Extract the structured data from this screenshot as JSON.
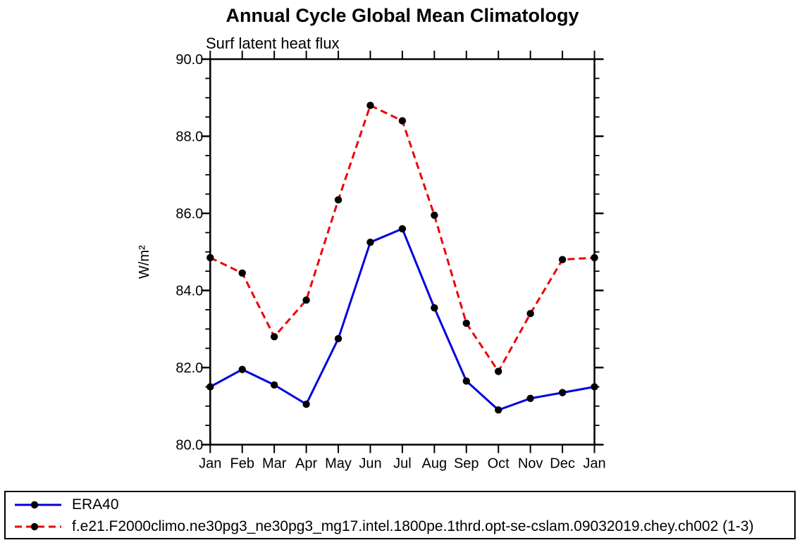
{
  "chart_data": {
    "type": "line",
    "title": "Annual Cycle Global Mean Climatology",
    "subtitle": "Surf latent heat flux",
    "xlabel": "",
    "ylabel": "W/m²",
    "ylim": [
      80.0,
      90.0
    ],
    "ytick_major_step": 2.0,
    "ytick_minor_step": 0.5,
    "yticklabels": [
      "80.0",
      "82.0",
      "84.0",
      "86.0",
      "88.0",
      "90.0"
    ],
    "categories": [
      "Jan",
      "Feb",
      "Mar",
      "Apr",
      "May",
      "Jun",
      "Jul",
      "Aug",
      "Sep",
      "Oct",
      "Nov",
      "Dec",
      "Jan"
    ],
    "grid": false,
    "legend_position": "bottom-box",
    "axis_color": "#000000",
    "series": [
      {
        "name": "ERA40",
        "color": "#0000e0",
        "line_style": "solid",
        "marker": "filled-circle",
        "marker_color": "#000000",
        "values": [
          81.5,
          81.95,
          81.55,
          81.05,
          82.75,
          85.25,
          85.6,
          83.55,
          81.65,
          80.9,
          81.2,
          81.35,
          81.5
        ]
      },
      {
        "name": "f.e21.F2000climo.ne30pg3_ne30pg3_mg17.intel.1800pe.1thrd.opt-se-cslam.09032019.chey.ch002 (1-3)",
        "color": "#ee0000",
        "line_style": "dashed",
        "marker": "filled-circle",
        "marker_color": "#000000",
        "values": [
          84.85,
          84.45,
          82.8,
          83.75,
          86.35,
          88.8,
          88.4,
          85.95,
          83.15,
          81.9,
          83.4,
          84.8,
          84.85
        ]
      }
    ]
  }
}
